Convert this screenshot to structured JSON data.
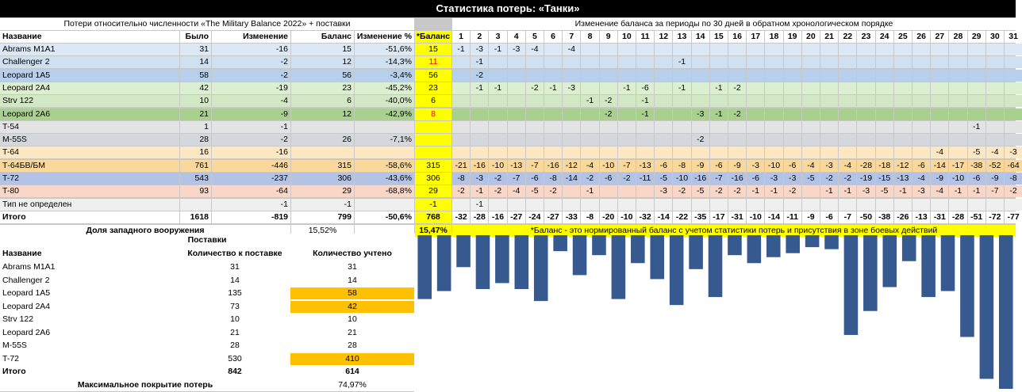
{
  "title": "Статистика потерь: «Танки»",
  "losses_table": {
    "header": "Потери относительно численности «The Military Balance 2022» + поставки",
    "columns": [
      "Название",
      "Было",
      "Изменение",
      "Баланс",
      "Изменение %",
      "*Баланс"
    ],
    "rows": [
      {
        "name": "Abrams M1A1",
        "was": "31",
        "change": "-16",
        "balance": "15",
        "pct": "-51,6%",
        "star": "15",
        "star_red": false
      },
      {
        "name": "Challenger 2",
        "was": "14",
        "change": "-2",
        "balance": "12",
        "pct": "-14,3%",
        "star": "11",
        "star_red": true
      },
      {
        "name": "Leopard 1A5",
        "was": "58",
        "change": "-2",
        "balance": "56",
        "pct": "-3,4%",
        "star": "56",
        "star_red": false
      },
      {
        "name": "Leopard 2A4",
        "was": "42",
        "change": "-19",
        "balance": "23",
        "pct": "-45,2%",
        "star": "23",
        "star_red": false
      },
      {
        "name": "Strv 122",
        "was": "10",
        "change": "-4",
        "balance": "6",
        "pct": "-40,0%",
        "star": "6",
        "star_red": false
      },
      {
        "name": "Leopard 2A6",
        "was": "21",
        "change": "-9",
        "balance": "12",
        "pct": "-42,9%",
        "star": "8",
        "star_red": true
      },
      {
        "name": "T-54",
        "was": "1",
        "change": "-1",
        "balance": "",
        "pct": "",
        "star": "",
        "star_red": false
      },
      {
        "name": "M-55S",
        "was": "28",
        "change": "-2",
        "balance": "26",
        "pct": "-7,1%",
        "star": "",
        "star_red": false
      },
      {
        "name": "T-64",
        "was": "16",
        "change": "-16",
        "balance": "",
        "pct": "",
        "star": "",
        "star_red": false
      },
      {
        "name": "Т-64БВ/БМ",
        "was": "761",
        "change": "-446",
        "balance": "315",
        "pct": "-58,6%",
        "star": "315",
        "star_red": false
      },
      {
        "name": "T-72",
        "was": "543",
        "change": "-237",
        "balance": "306",
        "pct": "-43,6%",
        "star": "306",
        "star_red": false
      },
      {
        "name": "T-80",
        "was": "93",
        "change": "-64",
        "balance": "29",
        "pct": "-68,8%",
        "star": "29",
        "star_red": false
      },
      {
        "name": "Тип не определен",
        "was": "",
        "change": "-1",
        "balance": "-1",
        "pct": "",
        "star": "-1",
        "star_red": false
      }
    ],
    "total": {
      "name": "Итого",
      "was": "1618",
      "change": "-819",
      "balance": "799",
      "pct": "-50,6%",
      "star": "768"
    },
    "western_share": {
      "label": "Доля западного вооружения",
      "value": "15,52%",
      "star_value": "15,47%"
    }
  },
  "period_table": {
    "header": "Изменение баланса за периоды по 30 дней в обратном хронологическом порядке",
    "periods": [
      "1",
      "2",
      "3",
      "4",
      "5",
      "6",
      "7",
      "8",
      "9",
      "10",
      "11",
      "12",
      "13",
      "14",
      "15",
      "16",
      "17",
      "18",
      "19",
      "20",
      "21",
      "22",
      "23",
      "24",
      "25",
      "26",
      "27",
      "28",
      "29",
      "30",
      "31"
    ],
    "rows": [
      [
        "-1",
        "-3",
        "-1",
        "-3",
        "-4",
        "",
        "-4",
        "",
        "",
        "",
        "",
        "",
        "",
        "",
        "",
        "",
        "",
        "",
        "",
        "",
        "",
        "",
        "",
        "",
        "",
        "",
        "",
        "",
        "",
        "",
        ""
      ],
      [
        "",
        "-1",
        "",
        "",
        "",
        "",
        "",
        "",
        "",
        "",
        "",
        "",
        "-1",
        "",
        "",
        "",
        "",
        "",
        "",
        "",
        "",
        "",
        "",
        "",
        "",
        "",
        "",
        "",
        "",
        "",
        ""
      ],
      [
        "",
        "-2",
        "",
        "",
        "",
        "",
        "",
        "",
        "",
        "",
        "",
        "",
        "",
        "",
        "",
        "",
        "",
        "",
        "",
        "",
        "",
        "",
        "",
        "",
        "",
        "",
        "",
        "",
        "",
        "",
        ""
      ],
      [
        "",
        "-1",
        "-1",
        "",
        "-2",
        "-1",
        "-3",
        "",
        "",
        "-1",
        "-6",
        "",
        "-1",
        "",
        "-1",
        "-2",
        "",
        "",
        "",
        "",
        "",
        "",
        "",
        "",
        "",
        "",
        "",
        "",
        "",
        "",
        ""
      ],
      [
        "",
        "",
        "",
        "",
        "",
        "",
        "",
        "-1",
        "-2",
        "",
        "-1",
        "",
        "",
        "",
        "",
        "",
        "",
        "",
        "",
        "",
        "",
        "",
        "",
        "",
        "",
        "",
        "",
        "",
        "",
        "",
        ""
      ],
      [
        "",
        "",
        "",
        "",
        "",
        "",
        "",
        "",
        "-2",
        "",
        "-1",
        "",
        "",
        "-3",
        "-1",
        "-2",
        "",
        "",
        "",
        "",
        "",
        "",
        "",
        "",
        "",
        "",
        "",
        "",
        "",
        "",
        ""
      ],
      [
        "",
        "",
        "",
        "",
        "",
        "",
        "",
        "",
        "",
        "",
        "",
        "",
        "",
        "",
        "",
        "",
        "",
        "",
        "",
        "",
        "",
        "",
        "",
        "",
        "",
        "",
        "",
        "",
        "-1",
        "",
        ""
      ],
      [
        "",
        "",
        "",
        "",
        "",
        "",
        "",
        "",
        "",
        "",
        "",
        "",
        "",
        "-2",
        "",
        "",
        "",
        "",
        "",
        "",
        "",
        "",
        "",
        "",
        "",
        "",
        "",
        "",
        "",
        "",
        ""
      ],
      [
        "",
        "",
        "",
        "",
        "",
        "",
        "",
        "",
        "",
        "",
        "",
        "",
        "",
        "",
        "",
        "",
        "",
        "",
        "",
        "",
        "",
        "",
        "",
        "",
        "",
        "",
        "-4",
        "",
        "-5",
        "-4",
        "-3"
      ],
      [
        "-21",
        "-16",
        "-10",
        "-13",
        "-7",
        "-16",
        "-12",
        "-4",
        "-10",
        "-7",
        "-13",
        "-6",
        "-8",
        "-9",
        "-6",
        "-9",
        "-3",
        "-10",
        "-6",
        "-4",
        "-3",
        "-4",
        "-28",
        "-18",
        "-12",
        "-6",
        "-14",
        "-17",
        "-38",
        "-52",
        "-64"
      ],
      [
        "-8",
        "-3",
        "-2",
        "-7",
        "-6",
        "-8",
        "-14",
        "-2",
        "-6",
        "-2",
        "-11",
        "-5",
        "-10",
        "-16",
        "-7",
        "-16",
        "-6",
        "-3",
        "-3",
        "-5",
        "-2",
        "-2",
        "-19",
        "-15",
        "-13",
        "-4",
        "-9",
        "-10",
        "-6",
        "-9",
        "-8"
      ],
      [
        "-2",
        "-1",
        "-2",
        "-4",
        "-5",
        "-2",
        "",
        "-1",
        "",
        "",
        "",
        "-3",
        "-2",
        "-5",
        "-2",
        "-2",
        "-1",
        "-1",
        "-2",
        "",
        "-1",
        "-1",
        "-3",
        "-5",
        "-1",
        "-3",
        "-4",
        "-1",
        "-1",
        "-7",
        "-2"
      ],
      [
        "",
        "-1",
        "",
        "",
        "",
        "",
        "",
        "",
        "",
        "",
        "",
        "",
        "",
        "",
        "",
        "",
        "",
        "",
        "",
        "",
        "",
        "",
        "",
        "",
        "",
        "",
        "",
        "",
        "",
        "",
        ""
      ]
    ],
    "totals": [
      "-32",
      "-28",
      "-16",
      "-27",
      "-24",
      "-27",
      "-33",
      "-8",
      "-20",
      "-10",
      "-32",
      "-14",
      "-22",
      "-35",
      "-17",
      "-31",
      "-10",
      "-14",
      "-11",
      "-9",
      "-6",
      "-7",
      "-50",
      "-38",
      "-26",
      "-13",
      "-31",
      "-28",
      "-51",
      "-72",
      "-77"
    ],
    "footnote": "*Баланс - это нормированный баланс с учетом статистики потерь и присутствия в зоне боевых действий"
  },
  "deliveries": {
    "header": "Поставки",
    "columns": [
      "Название",
      "Количество к поставке",
      "Количество учтено"
    ],
    "rows": [
      {
        "name": "Abrams M1A1",
        "to_deliver": "31",
        "counted": "31",
        "hl": false
      },
      {
        "name": "Challenger 2",
        "to_deliver": "14",
        "counted": "14",
        "hl": false
      },
      {
        "name": "Leopard 1A5",
        "to_deliver": "135",
        "counted": "58",
        "hl": true
      },
      {
        "name": "Leopard 2A4",
        "to_deliver": "73",
        "counted": "42",
        "hl": true
      },
      {
        "name": "Strv 122",
        "to_deliver": "10",
        "counted": "10",
        "hl": false
      },
      {
        "name": "Leopard 2A6",
        "to_deliver": "21",
        "counted": "21",
        "hl": false
      },
      {
        "name": "M-55S",
        "to_deliver": "28",
        "counted": "28",
        "hl": false
      },
      {
        "name": "T-72",
        "to_deliver": "530",
        "counted": "410",
        "hl": true
      }
    ],
    "total": {
      "name": "Итого",
      "to_deliver": "842",
      "counted": "614"
    },
    "coverage": {
      "label": "Максимальное покрытие потерь",
      "value": "74,97%"
    }
  },
  "colors": {
    "header_black": "#000000",
    "row_fills": [
      "#dbe8f5",
      "#cfe0f1",
      "#b6cfea",
      "#dcefd0",
      "#d2e8c4",
      "#a9d18e",
      "#e3e3e3",
      "#d4d8dd",
      "#fde6c2",
      "#fad89b",
      "#b3c3e6",
      "#f8d6c8",
      "#efefef"
    ],
    "yellow": "#ffff00",
    "orange_highlight": "#ffc000",
    "red_text": "#ff0000",
    "bar_color": "#36598f"
  },
  "chart_data": {
    "type": "bar",
    "categories": [
      "1",
      "2",
      "3",
      "4",
      "5",
      "6",
      "7",
      "8",
      "9",
      "10",
      "11",
      "12",
      "13",
      "14",
      "15",
      "16",
      "17",
      "18",
      "19",
      "20",
      "21",
      "22",
      "23",
      "24",
      "25",
      "26",
      "27",
      "28",
      "29",
      "30",
      "31"
    ],
    "values": [
      -32,
      -28,
      -16,
      -27,
      -24,
      -27,
      -33,
      -8,
      -20,
      -10,
      -32,
      -14,
      -22,
      -35,
      -17,
      -31,
      -10,
      -14,
      -11,
      -9,
      -6,
      -7,
      -50,
      -38,
      -26,
      -13,
      -31,
      -28,
      -51,
      -72,
      -77
    ],
    "title": "",
    "xlabel": "",
    "ylabel": "",
    "ylim": [
      -77,
      0
    ],
    "grid": false,
    "legend": "none"
  }
}
